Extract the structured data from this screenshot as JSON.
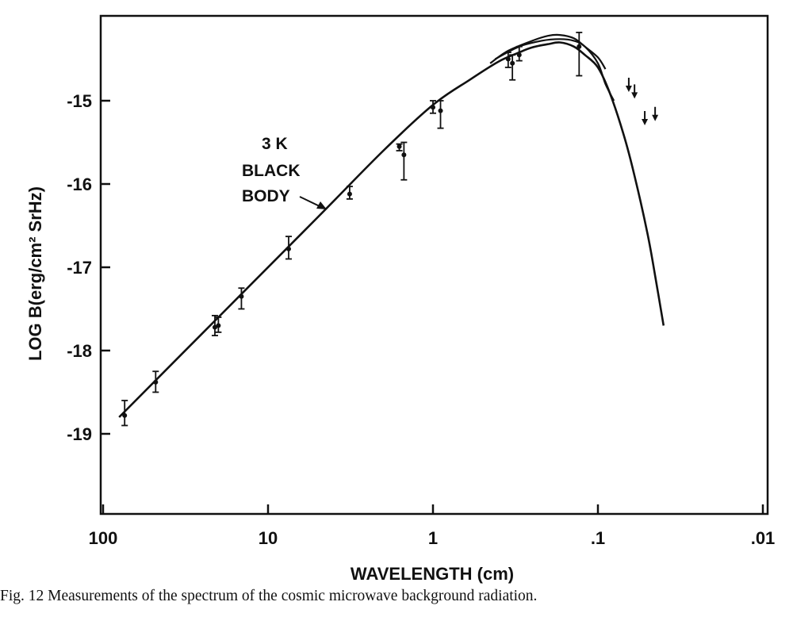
{
  "chart_data": {
    "type": "scatter",
    "title": "",
    "xlabel": "WAVELENGTH  (cm)",
    "ylabel": "LOG B(erg/cm² SrHz)",
    "x_scale": "log",
    "x_reversed": true,
    "xlim": [
      150,
      0.008
    ],
    "ylim": [
      -20,
      -14
    ],
    "xticks": [
      100,
      10,
      1,
      0.1,
      0.01
    ],
    "xtick_labels": [
      "100",
      "10",
      "1",
      ".1",
      ".01"
    ],
    "yticks": [
      -15,
      -16,
      -17,
      -18,
      -19
    ],
    "ytick_labels": [
      "-15",
      "-16",
      "-17",
      "-18",
      "-19"
    ],
    "grid": false,
    "annotation": [
      "3 K",
      "BLACK",
      "BODY"
    ],
    "caption": "Fig. 12 Measurements of the spectrum of the cosmic microwave background radiation.",
    "series": [
      {
        "kind": "curve",
        "points": [
          [
            80,
            -18.8
          ],
          [
            20,
            -17.6
          ],
          [
            5,
            -16.4
          ],
          [
            2,
            -15.6
          ],
          [
            1,
            -15.05
          ],
          [
            0.6,
            -14.75
          ],
          [
            0.4,
            -14.53
          ],
          [
            0.3,
            -14.42
          ],
          [
            0.25,
            -14.36
          ],
          [
            0.2,
            -14.32
          ],
          [
            0.17,
            -14.3
          ],
          [
            0.14,
            -14.35
          ],
          [
            0.12,
            -14.45
          ],
          [
            0.1,
            -14.6
          ],
          [
            0.085,
            -14.9
          ],
          [
            0.07,
            -15.4
          ],
          [
            0.06,
            -15.9
          ],
          [
            0.05,
            -16.6
          ],
          [
            0.045,
            -17.1
          ],
          [
            0.04,
            -17.7
          ]
        ]
      },
      {
        "kind": "curve",
        "points": [
          [
            0.45,
            -14.55
          ],
          [
            0.35,
            -14.4
          ],
          [
            0.25,
            -14.28
          ],
          [
            0.2,
            -14.22
          ],
          [
            0.17,
            -14.21
          ],
          [
            0.14,
            -14.25
          ],
          [
            0.12,
            -14.35
          ],
          [
            0.1,
            -14.48
          ],
          [
            0.09,
            -14.62
          ]
        ]
      },
      {
        "kind": "curve",
        "points": [
          [
            0.42,
            -14.5
          ],
          [
            0.3,
            -14.35
          ],
          [
            0.22,
            -14.28
          ],
          [
            0.17,
            -14.26
          ],
          [
            0.14,
            -14.28
          ],
          [
            0.12,
            -14.35
          ],
          [
            0.1,
            -14.55
          ],
          [
            0.09,
            -14.8
          ],
          [
            0.08,
            -15.0
          ]
        ]
      },
      {
        "kind": "measurements",
        "points": [
          {
            "x": 74,
            "y": -18.78,
            "lo": -18.9,
            "hi": -18.6
          },
          {
            "x": 48,
            "y": -18.38,
            "lo": -18.5,
            "hi": -18.25
          },
          {
            "x": 21,
            "y": -17.72,
            "lo": -17.82,
            "hi": -17.58
          },
          {
            "x": 20,
            "y": -17.7,
            "lo": -17.78,
            "hi": -17.6
          },
          {
            "x": 14.5,
            "y": -17.35,
            "lo": -17.5,
            "hi": -17.25
          },
          {
            "x": 7.5,
            "y": -16.78,
            "lo": -16.9,
            "hi": -16.63
          },
          {
            "x": 3.2,
            "y": -16.12,
            "lo": -16.18,
            "hi": -16.03
          },
          {
            "x": 1.6,
            "y": -15.55,
            "lo": -15.6,
            "hi": -15.52
          },
          {
            "x": 1.5,
            "y": -15.65,
            "lo": -15.95,
            "hi": -15.5
          },
          {
            "x": 1.0,
            "y": -15.08,
            "lo": -15.15,
            "hi": -15.0
          },
          {
            "x": 0.9,
            "y": -15.12,
            "lo": -15.33,
            "hi": -15.0
          },
          {
            "x": 0.35,
            "y": -14.5,
            "lo": -14.6,
            "hi": -14.42
          },
          {
            "x": 0.33,
            "y": -14.55,
            "lo": -14.75,
            "hi": -14.45
          },
          {
            "x": 0.3,
            "y": -14.45,
            "lo": -14.52,
            "hi": -14.35
          },
          {
            "x": 0.13,
            "y": -14.35,
            "lo": -14.7,
            "hi": -14.18
          }
        ]
      },
      {
        "kind": "upper_limits",
        "points": [
          [
            0.065,
            -14.8
          ],
          [
            0.06,
            -14.88
          ],
          [
            0.052,
            -15.2
          ],
          [
            0.045,
            -15.15
          ]
        ]
      }
    ]
  }
}
